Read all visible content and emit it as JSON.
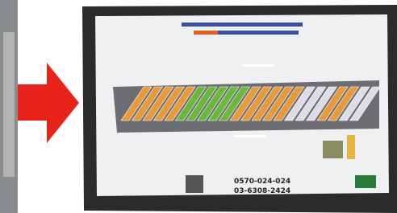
{
  "screen": {
    "phones": [
      "0570-024-024",
      "03-6308-2424"
    ]
  }
}
